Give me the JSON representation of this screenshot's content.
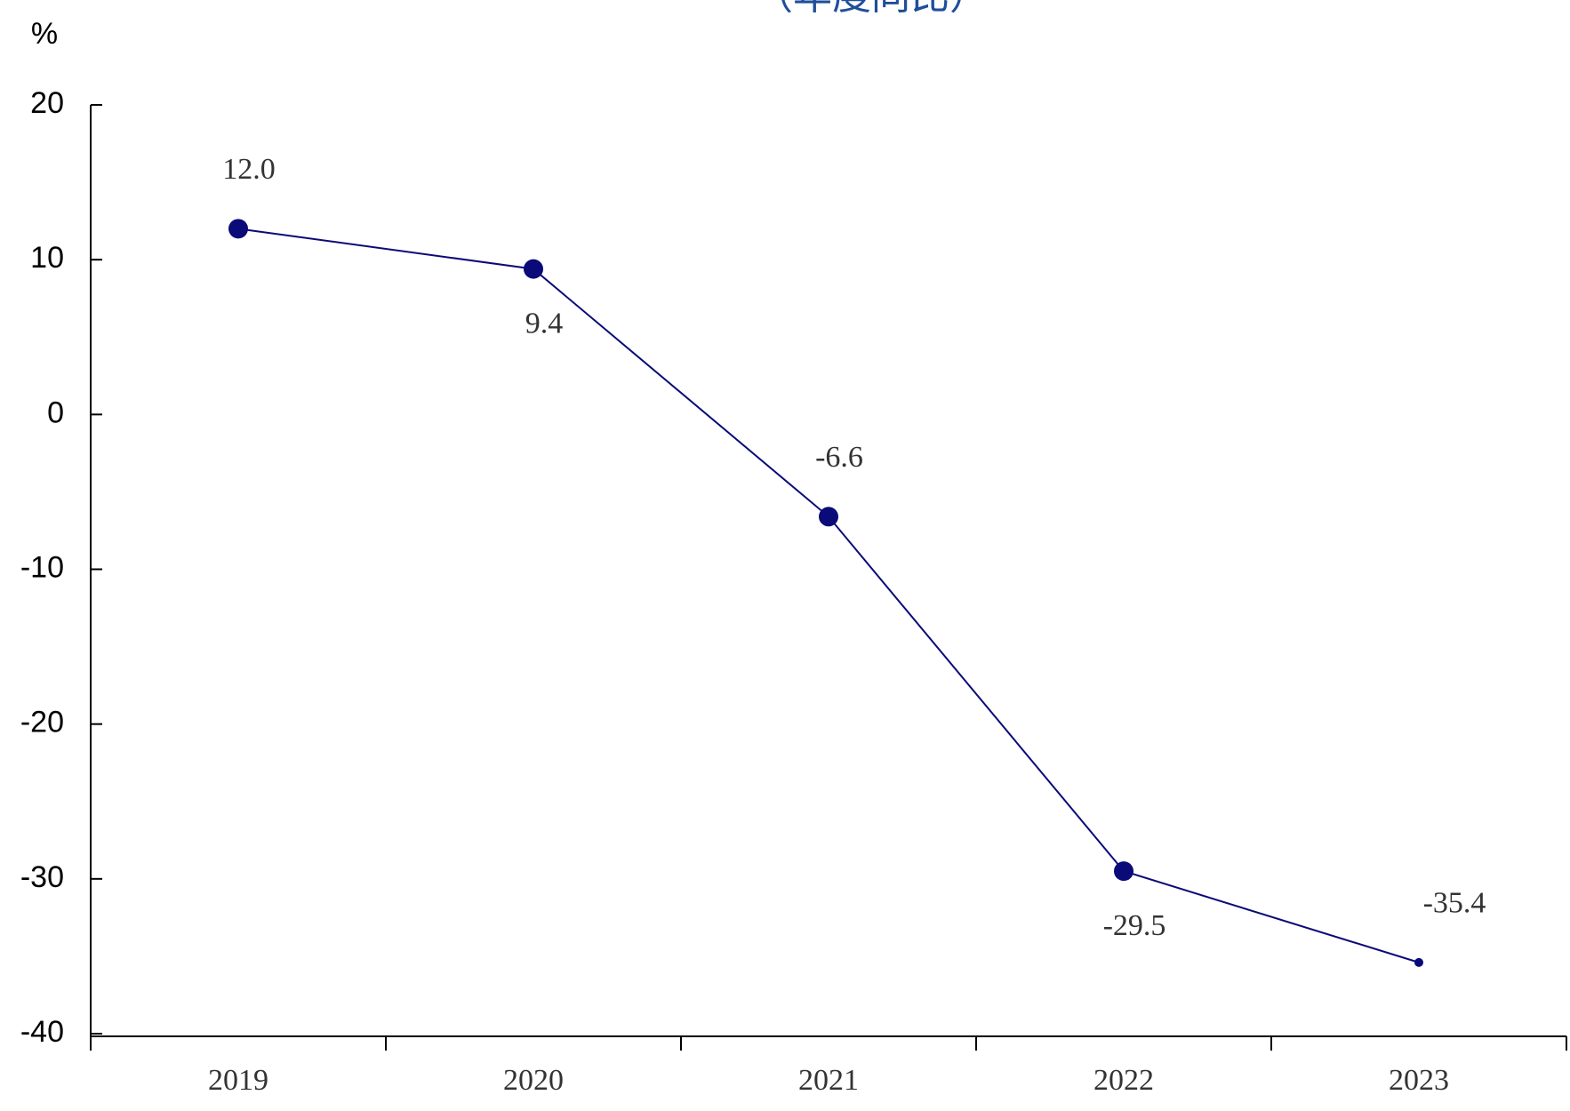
{
  "chart_data": {
    "type": "line",
    "title": "（年度同比）",
    "y_label": "%",
    "categories": [
      "2019",
      "2020",
      "2021",
      "2022",
      "2023"
    ],
    "series": [
      {
        "name": "同比",
        "color": "#0a0a78",
        "values": [
          12.0,
          9.4,
          -6.6,
          -29.5,
          -35.4
        ],
        "value_labels": [
          "12.0",
          "9.4",
          "-6.6",
          "-29.5",
          "-35.4"
        ]
      }
    ],
    "ylim": [
      -40,
      20
    ],
    "yticks": [
      -40,
      -30,
      -20,
      -10,
      0,
      10,
      20
    ],
    "grid": false
  }
}
